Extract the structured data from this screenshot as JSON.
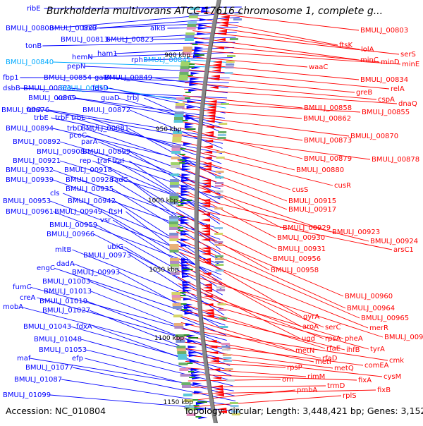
{
  "title": "Burkholderia multivorans ATCC 17616 chromosome 1, complete g...",
  "footer": {
    "accession": "Accession: NC_010804",
    "topology": "Topology: circular; Length: 3,448,421 bp; Genes: 3,152"
  },
  "colors": {
    "forward": "#0000ff",
    "reverse": "#ff0000",
    "rna": "#00aaff",
    "backbone": "#888888"
  },
  "scale_ticks": [
    {
      "label": "900 kbp"
    },
    {
      "label": "950 kbp"
    },
    {
      "label": "1000 kbp"
    },
    {
      "label": "1050 kbp"
    },
    {
      "label": "1100 kbp"
    },
    {
      "label": "1150 kbp"
    }
  ],
  "left_genes": [
    {
      "label": "ribE",
      "color": "blue"
    },
    {
      "label": "BMULJ_00808",
      "color": "blue"
    },
    {
      "label": "BMULJ_00807",
      "color": "blue"
    },
    {
      "label": "trxB",
      "color": "blue"
    },
    {
      "label": "alkB",
      "color": "blue"
    },
    {
      "label": "BMULJ_00813",
      "color": "blue"
    },
    {
      "label": "BMULJ_00823",
      "color": "blue"
    },
    {
      "label": "tonB",
      "color": "blue"
    },
    {
      "label": "ham1",
      "color": "blue"
    },
    {
      "label": "hemN",
      "color": "blue"
    },
    {
      "label": "rph",
      "color": "blue"
    },
    {
      "label": "BMULJ_00841",
      "color": "cyan"
    },
    {
      "label": "BMULJ_00840",
      "color": "cyan"
    },
    {
      "label": "pepN",
      "color": "blue"
    },
    {
      "label": "fbp1",
      "color": "blue"
    },
    {
      "label": "BMULJ_00854",
      "color": "blue"
    },
    {
      "label": "BMULJ_00849",
      "color": "blue"
    },
    {
      "label": "gatA",
      "color": "blue"
    },
    {
      "label": "dsbB",
      "color": "blue"
    },
    {
      "label": "BMULJ_00863",
      "color": "blue"
    },
    {
      "label": "BMULJ_00859",
      "color": "cyan"
    },
    {
      "label": "fdsD",
      "color": "blue"
    },
    {
      "label": "BMULJ_00869",
      "color": "blue"
    },
    {
      "label": "xdhC",
      "color": "blue"
    },
    {
      "label": "guaD",
      "color": "blue"
    },
    {
      "label": "trbJ",
      "color": "blue"
    },
    {
      "label": "BMULJ_00876",
      "color": "blue"
    },
    {
      "label": "fdhA",
      "color": "blue"
    },
    {
      "label": "BMULJ_00872",
      "color": "blue"
    },
    {
      "label": "trbE",
      "color": "blue"
    },
    {
      "label": "trbF",
      "color": "blue"
    },
    {
      "label": "trbL",
      "color": "blue"
    },
    {
      "label": "BMULJ_00894",
      "color": "blue"
    },
    {
      "label": "trbD",
      "color": "blue"
    },
    {
      "label": "BMULJ_00881",
      "color": "blue"
    },
    {
      "label": "pcoC",
      "color": "blue"
    },
    {
      "label": "BMULJ_00892",
      "color": "blue"
    },
    {
      "label": "parA",
      "color": "blue"
    },
    {
      "label": "BMULJ_00908",
      "color": "blue"
    },
    {
      "label": "BMULJ_00899",
      "color": "blue"
    },
    {
      "label": "BMULJ_00921",
      "color": "blue"
    },
    {
      "label": "rep",
      "color": "blue"
    },
    {
      "label": "traF",
      "color": "blue"
    },
    {
      "label": "traI",
      "color": "blue"
    },
    {
      "label": "BMULJ_00932",
      "color": "blue"
    },
    {
      "label": "BMULJ_00918",
      "color": "blue"
    },
    {
      "label": "BMULJ_00939",
      "color": "blue"
    },
    {
      "label": "BMULJ_00928",
      "color": "blue"
    },
    {
      "label": "radC",
      "color": "blue"
    },
    {
      "label": "BMULJ_00935",
      "color": "blue"
    },
    {
      "label": "cls",
      "color": "blue"
    },
    {
      "label": "BMULJ_00953",
      "color": "blue"
    },
    {
      "label": "BMULJ_00942",
      "color": "blue"
    },
    {
      "label": "BMULJ_00961",
      "color": "blue"
    },
    {
      "label": "BMULJ_00949",
      "color": "blue"
    },
    {
      "label": "ftsH",
      "color": "blue"
    },
    {
      "label": "vsr",
      "color": "blue"
    },
    {
      "label": "BMULJ_00959",
      "color": "blue"
    },
    {
      "label": "BMULJ_00966",
      "color": "blue"
    },
    {
      "label": "ubiG",
      "color": "blue"
    },
    {
      "label": "mltB",
      "color": "blue"
    },
    {
      "label": "BMULJ_00973",
      "color": "blue"
    },
    {
      "label": "dadA",
      "color": "blue"
    },
    {
      "label": "engC",
      "color": "blue"
    },
    {
      "label": "BMULJ_00993",
      "color": "blue"
    },
    {
      "label": "BMULJ_01003",
      "color": "blue"
    },
    {
      "label": "fumC",
      "color": "blue"
    },
    {
      "label": "BMULJ_01013",
      "color": "blue"
    },
    {
      "label": "creA",
      "color": "blue"
    },
    {
      "label": "BMULJ_01019",
      "color": "blue"
    },
    {
      "label": "mobA",
      "color": "blue"
    },
    {
      "label": "BMULJ_01027",
      "color": "blue"
    },
    {
      "label": "BMULJ_01043",
      "color": "blue"
    },
    {
      "label": "fdxA",
      "color": "blue"
    },
    {
      "label": "BMULJ_01048",
      "color": "blue"
    },
    {
      "label": "BMULJ_01053",
      "color": "blue"
    },
    {
      "label": "maf",
      "color": "blue"
    },
    {
      "label": "efp",
      "color": "blue"
    },
    {
      "label": "BMULJ_01077",
      "color": "blue"
    },
    {
      "label": "BMULJ_01087",
      "color": "blue"
    },
    {
      "label": "BMULJ_01099",
      "color": "blue"
    }
  ],
  "right_genes": [
    {
      "label": "BMULJ_00803"
    },
    {
      "label": "ftsK"
    },
    {
      "label": "lolA"
    },
    {
      "label": "serS"
    },
    {
      "label": "minC"
    },
    {
      "label": "minD"
    },
    {
      "label": "minE"
    },
    {
      "label": "waaC"
    },
    {
      "label": "BMULJ_00834"
    },
    {
      "label": "relA"
    },
    {
      "label": "greB"
    },
    {
      "label": "cspA"
    },
    {
      "label": "dnaQ"
    },
    {
      "label": "BMULJ_00858"
    },
    {
      "label": "BMULJ_00855"
    },
    {
      "label": "BMULJ_00862"
    },
    {
      "label": "BMULJ_00870"
    },
    {
      "label": "BMULJ_00873"
    },
    {
      "label": "BMULJ_00879"
    },
    {
      "label": "BMULJ_00878"
    },
    {
      "label": "BMULJ_00880"
    },
    {
      "label": "cusR"
    },
    {
      "label": "cusS"
    },
    {
      "label": "BMULJ_00915"
    },
    {
      "label": "BMULJ_00917"
    },
    {
      "label": "BMULJ_00929"
    },
    {
      "label": "BMULJ_00923"
    },
    {
      "label": "BMULJ_00930"
    },
    {
      "label": "BMULJ_00924"
    },
    {
      "label": "BMULJ_00931"
    },
    {
      "label": "arsC1"
    },
    {
      "label": "BMULJ_00956"
    },
    {
      "label": "BMULJ_00958"
    },
    {
      "label": "BMULJ_00960"
    },
    {
      "label": "BMULJ_00964"
    },
    {
      "label": "BMULJ_00965"
    },
    {
      "label": "gyrA"
    },
    {
      "label": "merR"
    },
    {
      "label": "aroA"
    },
    {
      "label": "serC"
    },
    {
      "label": "BMULJ_00974"
    },
    {
      "label": "ugd"
    },
    {
      "label": "rpsA"
    },
    {
      "label": "pheA"
    },
    {
      "label": "tyrA"
    },
    {
      "label": "rfaE"
    },
    {
      "label": "ihfB"
    },
    {
      "label": "metN"
    },
    {
      "label": "rfaD"
    },
    {
      "label": "cmk"
    },
    {
      "label": "metI"
    },
    {
      "label": "comEA"
    },
    {
      "label": "metQ"
    },
    {
      "label": "cysM"
    },
    {
      "label": "rpsP"
    },
    {
      "label": "rimM"
    },
    {
      "label": "fixA"
    },
    {
      "label": "orn"
    },
    {
      "label": "trmD"
    },
    {
      "label": "fixB"
    },
    {
      "label": "pmbA"
    },
    {
      "label": "rplS"
    }
  ]
}
